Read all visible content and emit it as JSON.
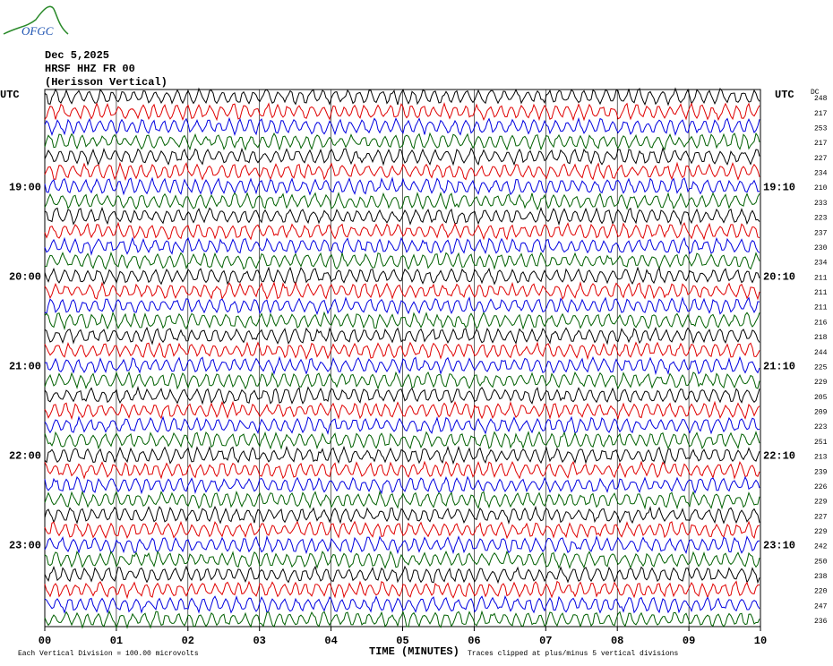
{
  "chart_data": {
    "type": "helicorder",
    "logo": "OFGC",
    "title": [
      "Dec 5,2025",
      "HRSF HHZ FR 00",
      "(Herisson Vertical)"
    ],
    "left_axis_label": "UTC",
    "right_axis_label": "UTC",
    "dc_header": "DC",
    "left_row_labels": [
      "19:00",
      "20:00",
      "21:00",
      "22:00",
      "23:00"
    ],
    "right_row_labels": [
      "19:10",
      "20:10",
      "21:10",
      "22:10",
      "23:10"
    ],
    "dc_values": [
      248,
      217,
      253,
      217,
      227,
      234,
      210,
      233,
      223,
      237,
      230,
      234,
      211,
      211,
      211,
      216,
      218,
      244,
      225,
      229,
      205,
      209,
      223,
      251,
      213,
      239,
      226,
      229,
      227,
      229,
      242,
      250,
      238,
      220,
      247,
      236
    ],
    "trace_colors": [
      "#000000",
      "#e00000",
      "#0000e0",
      "#006000"
    ],
    "xlabel": "TIME (MINUTES)",
    "xlim": [
      0,
      10
    ],
    "xticks": [
      {
        "value": 0,
        "label": "00"
      },
      {
        "value": 1,
        "label": "01"
      },
      {
        "value": 2,
        "label": "02"
      },
      {
        "value": 3,
        "label": "03"
      },
      {
        "value": 4,
        "label": "04"
      },
      {
        "value": 5,
        "label": "05"
      },
      {
        "value": 6,
        "label": "06"
      },
      {
        "value": 7,
        "label": "07"
      },
      {
        "value": 8,
        "label": "08"
      },
      {
        "value": 9,
        "label": "09"
      },
      {
        "value": 10,
        "label": "10"
      }
    ],
    "footer_left": "Each Vertical Division = 100.00 microvolts",
    "footer_right": "Traces clipped at plus/minus 5 vertical divisions"
  }
}
